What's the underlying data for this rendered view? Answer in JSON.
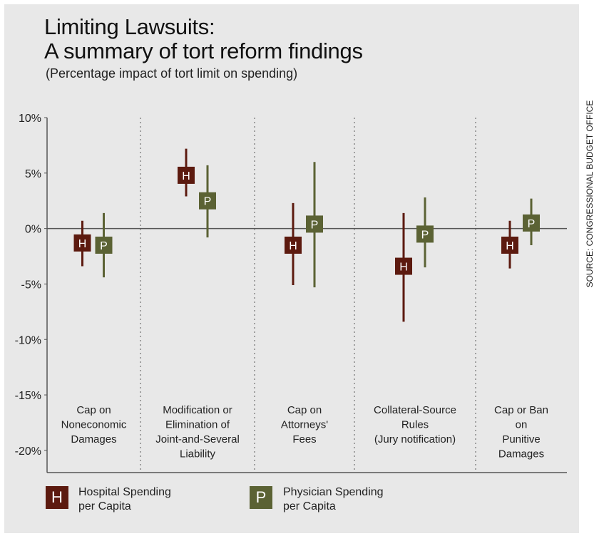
{
  "chart_data": {
    "type": "error-bar",
    "title": "Limiting Lawsuits:",
    "title_line2": "A summary of tort reform findings",
    "subtitle": "(Percentage impact of tort limit on spending)",
    "ylabel": "",
    "ylim": [
      -22,
      10
    ],
    "y_ticks": [
      10,
      5,
      0,
      -5,
      -10,
      -15,
      -20
    ],
    "y_tick_labels": [
      "10%",
      "5%",
      "0%",
      "-5%",
      "-10%",
      "-15%",
      "-20%"
    ],
    "categories": [
      [
        "Cap on",
        "Noneconomic",
        "Damages"
      ],
      [
        "Modification or",
        "Elimination of",
        "Joint-and-Several",
        "Liability"
      ],
      [
        "Cap on",
        "Attorneys'",
        "Fees"
      ],
      [
        "Collateral-Source",
        "Rules",
        "(Jury notification)"
      ],
      [
        "Cap or Ban",
        "on",
        "Punitive",
        "Damages"
      ]
    ],
    "series": [
      {
        "name": "Hospital Spending per Capita",
        "marker": "H",
        "color": "#5c1a0f",
        "values": [
          -1.3,
          4.8,
          -1.5,
          -3.4,
          -1.5
        ],
        "low": [
          -3.4,
          2.9,
          -5.1,
          -8.4,
          -3.6
        ],
        "high": [
          0.7,
          7.2,
          2.3,
          1.4,
          0.7
        ]
      },
      {
        "name": "Physician Spending per Capita",
        "marker": "P",
        "color": "#5b6234",
        "values": [
          -1.5,
          2.5,
          0.4,
          -0.5,
          0.5
        ],
        "low": [
          -4.4,
          -0.8,
          -5.3,
          -3.5,
          -1.5
        ],
        "high": [
          1.4,
          5.7,
          6.0,
          2.8,
          2.7
        ]
      }
    ]
  },
  "legend": {
    "hospital_symbol": "H",
    "hospital_label": "Hospital Spending\nper Capita",
    "physician_symbol": "P",
    "physician_label": "Physician Spending\nper Capita"
  },
  "source": "SOURCE: CONGRESSIONAL BUDGET OFFICE"
}
